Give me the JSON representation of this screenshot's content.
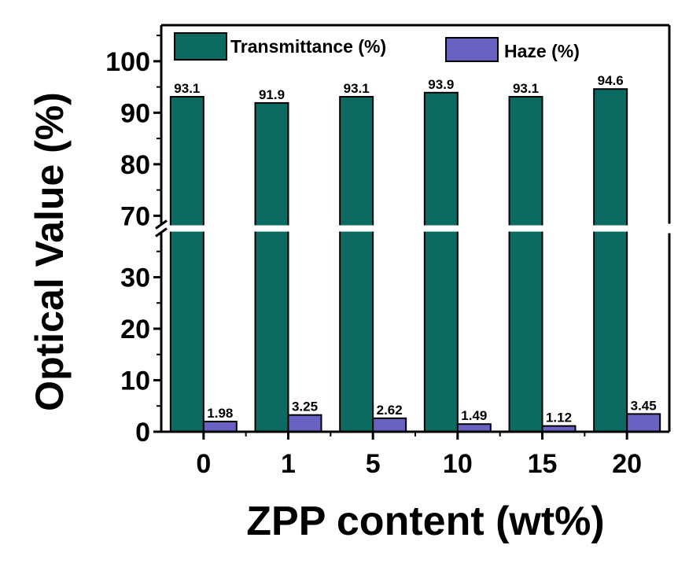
{
  "chart_data": {
    "type": "bar",
    "xlabel": "ZPP content (wt%)",
    "ylabel": "Optical Value (%)",
    "categories": [
      "0",
      "1",
      "5",
      "10",
      "15",
      "20"
    ],
    "series": [
      {
        "name": "Transmittance (%)",
        "color": "#0b6b60",
        "values": [
          93.1,
          91.9,
          93.1,
          93.9,
          93.1,
          94.6
        ],
        "labels": [
          "93.1",
          "91.9",
          "93.1",
          "93.9",
          "93.1",
          "94.6"
        ]
      },
      {
        "name": "Haze (%)",
        "color": "#6a62c2",
        "values": [
          1.98,
          3.25,
          2.62,
          1.49,
          1.12,
          3.45
        ],
        "labels": [
          "1.98",
          "3.25",
          "2.62",
          "1.49",
          "1.12",
          "3.45"
        ]
      }
    ],
    "y_axis": {
      "broken": true,
      "lower_range": [
        0,
        40
      ],
      "upper_range": [
        67,
        107
      ],
      "ticks": [
        0,
        10,
        20,
        30,
        70,
        80,
        90,
        100
      ],
      "tick_labels": [
        "0",
        "10",
        "20",
        "30",
        "70",
        "80",
        "90",
        "100"
      ]
    },
    "legend": "top",
    "grid": false
  }
}
